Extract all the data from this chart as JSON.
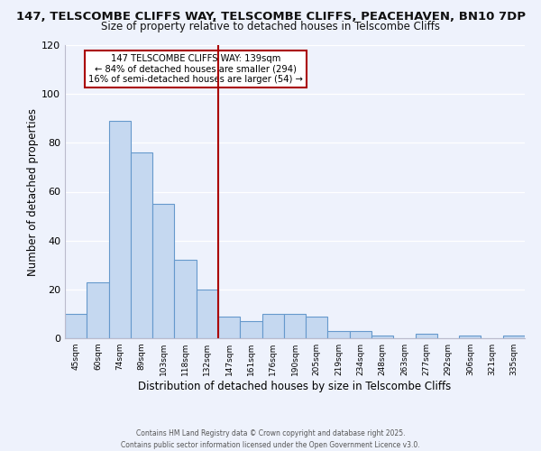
{
  "title_line1": "147, TELSCOMBE CLIFFS WAY, TELSCOMBE CLIFFS, PEACEHAVEN, BN10 7DP",
  "title_line2": "Size of property relative to detached houses in Telscombe Cliffs",
  "xlabel": "Distribution of detached houses by size in Telscombe Cliffs",
  "ylabel": "Number of detached properties",
  "bar_values": [
    10,
    23,
    89,
    76,
    55,
    32,
    20,
    9,
    7,
    10,
    10,
    9,
    3,
    3,
    1,
    0,
    2,
    0,
    1,
    0,
    1
  ],
  "categories": [
    "45sqm",
    "60sqm",
    "74sqm",
    "89sqm",
    "103sqm",
    "118sqm",
    "132sqm",
    "147sqm",
    "161sqm",
    "176sqm",
    "190sqm",
    "205sqm",
    "219sqm",
    "234sqm",
    "248sqm",
    "263sqm",
    "277sqm",
    "292sqm",
    "306sqm",
    "321sqm",
    "335sqm"
  ],
  "bar_color": "#c5d8f0",
  "bar_edge_color": "#6699cc",
  "vline_color": "#aa0000",
  "vline_bin": 7,
  "ylim": [
    0,
    120
  ],
  "yticks": [
    0,
    20,
    40,
    60,
    80,
    100,
    120
  ],
  "annotation_title": "147 TELSCOMBE CLIFFS WAY: 139sqm",
  "annotation_line2": "← 84% of detached houses are smaller (294)",
  "annotation_line3": "16% of semi-detached houses are larger (54) →",
  "annotation_box_color": "#ffffff",
  "annotation_border_color": "#aa0000",
  "bg_color": "#eef2fc",
  "grid_color": "#ffffff",
  "spine_color": "#bbbbcc",
  "footer_line1": "Contains HM Land Registry data © Crown copyright and database right 2025.",
  "footer_line2": "Contains public sector information licensed under the Open Government Licence v3.0."
}
